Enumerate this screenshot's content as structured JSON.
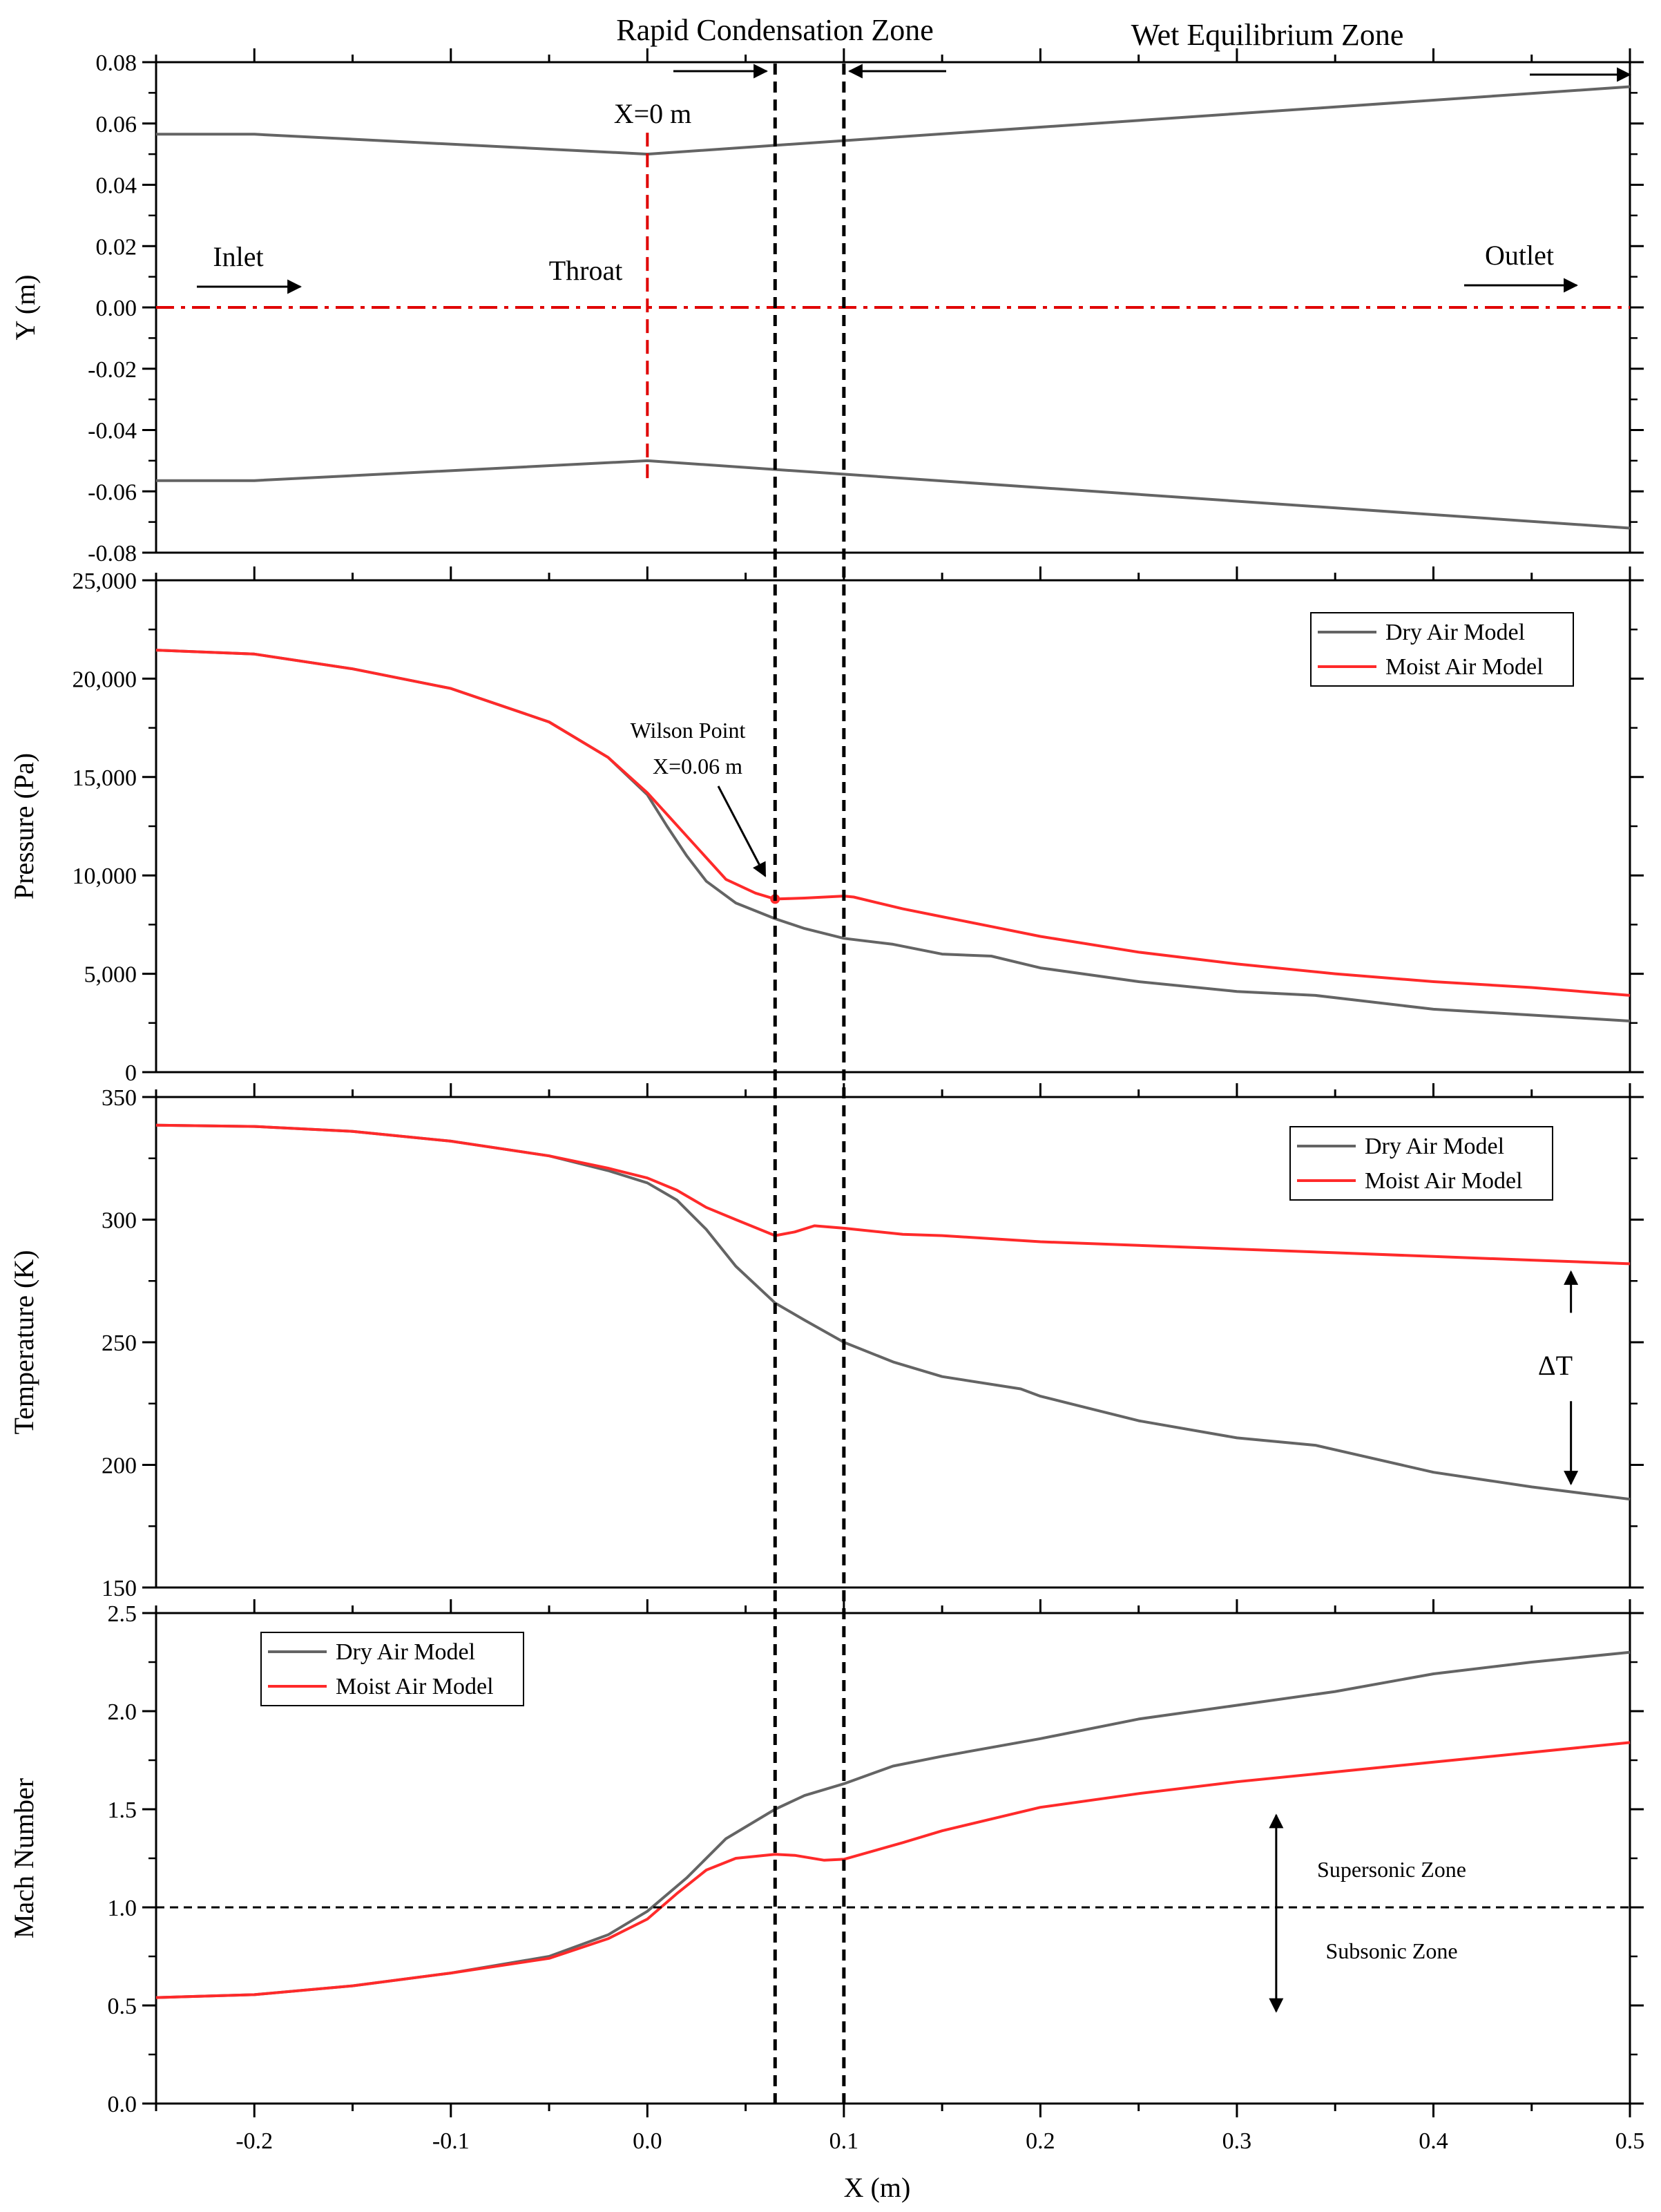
{
  "figure": {
    "x_axis": {
      "label": "X (m)",
      "range": [
        -0.25,
        0.5
      ],
      "ticks": [
        -0.2,
        -0.1,
        0.0,
        0.1,
        0.2,
        0.3,
        0.4,
        0.5
      ],
      "tick_labels": [
        "-0.2",
        "-0.1",
        "0.0",
        "0.1",
        "0.2",
        "0.3",
        "0.4",
        "0.5"
      ]
    },
    "zones": {
      "rapid_label": "Rapid Condensation Zone",
      "wet_label": "Wet Equilibrium Zone",
      "rapid_start_x": 0.065,
      "rapid_end_x": 0.1
    },
    "colors": {
      "dry": "#646464",
      "moist": "#ff2a2a",
      "centerline": "#e00000",
      "black": "#000000"
    },
    "legend": {
      "dry": "Dry Air Model",
      "moist": "Moist Air Model"
    }
  },
  "chart_data": [
    {
      "type": "line",
      "name": "geometry",
      "ylabel": "Y (m)",
      "ylim": [
        -0.08,
        0.08
      ],
      "yticks": [
        -0.08,
        -0.06,
        -0.04,
        -0.02,
        0.0,
        0.02,
        0.04,
        0.06,
        0.08
      ],
      "ytick_labels": [
        "-0.08",
        "-0.06",
        "-0.04",
        "-0.02",
        "0.00",
        "0.02",
        "0.04",
        "0.06",
        "0.08"
      ],
      "series": [
        {
          "name": "upper wall",
          "color": "#646464",
          "x": [
            -0.25,
            -0.2,
            0.0,
            0.5
          ],
          "y": [
            0.0565,
            0.0565,
            0.05,
            0.072
          ]
        },
        {
          "name": "lower wall",
          "color": "#646464",
          "x": [
            -0.25,
            -0.2,
            0.0,
            0.5
          ],
          "y": [
            -0.0565,
            -0.0565,
            -0.05,
            -0.072
          ]
        }
      ],
      "centerline_y": 0.0,
      "throat_x": 0.0,
      "throat_y_range": [
        -0.057,
        0.057
      ],
      "annotations": {
        "throat_pos": "X=0 m",
        "inlet": "Inlet",
        "throat": "Throat",
        "outlet": "Outlet"
      }
    },
    {
      "type": "line",
      "name": "pressure",
      "ylabel": "Pressure (Pa)",
      "ylim": [
        0,
        25000
      ],
      "yticks": [
        0,
        5000,
        10000,
        15000,
        20000,
        25000
      ],
      "ytick_labels": [
        "0",
        "5,000",
        "10,000",
        "15,000",
        "20,000",
        "25,000"
      ],
      "legend_position": "top-right",
      "series": [
        {
          "name": "Dry Air Model",
          "color": "#646464",
          "x": [
            -0.25,
            -0.2,
            -0.15,
            -0.1,
            -0.05,
            -0.02,
            0.0,
            0.01,
            0.02,
            0.03,
            0.045,
            0.065,
            0.08,
            0.1,
            0.125,
            0.15,
            0.175,
            0.2,
            0.25,
            0.3,
            0.34,
            0.4,
            0.45,
            0.5
          ],
          "y": [
            21450,
            21250,
            20500,
            19500,
            17800,
            16000,
            14100,
            12500,
            11000,
            9700,
            8600,
            7800,
            7300,
            6800,
            6500,
            6000,
            5900,
            5300,
            4600,
            4100,
            3900,
            3200,
            2900,
            2600
          ]
        },
        {
          "name": "Moist Air Model",
          "color": "#ff2a2a",
          "x": [
            -0.25,
            -0.2,
            -0.15,
            -0.1,
            -0.05,
            -0.02,
            0.0,
            0.01,
            0.02,
            0.03,
            0.04,
            0.055,
            0.065,
            0.08,
            0.1,
            0.105,
            0.13,
            0.15,
            0.175,
            0.2,
            0.25,
            0.3,
            0.35,
            0.4,
            0.45,
            0.5
          ],
          "y": [
            21450,
            21250,
            20500,
            19500,
            17800,
            16000,
            14200,
            13100,
            12000,
            10900,
            9800,
            9100,
            8800,
            8850,
            8950,
            8900,
            8300,
            7900,
            7400,
            6900,
            6100,
            5500,
            5000,
            4600,
            4300,
            3900
          ]
        }
      ],
      "wilson_point": {
        "x": 0.065,
        "y": 8800,
        "label_line1": "Wilson Point",
        "label_line2": "X=0.06 m"
      }
    },
    {
      "type": "line",
      "name": "temperature",
      "ylabel": "Temperature (K)",
      "ylim": [
        150,
        350
      ],
      "yticks": [
        150,
        200,
        250,
        300,
        350
      ],
      "ytick_labels": [
        "150",
        "200",
        "250",
        "300",
        "350"
      ],
      "legend_position": "top-right",
      "series": [
        {
          "name": "Dry Air Model",
          "color": "#646464",
          "x": [
            -0.25,
            -0.2,
            -0.15,
            -0.1,
            -0.05,
            -0.02,
            0.0,
            0.015,
            0.03,
            0.045,
            0.065,
            0.08,
            0.1,
            0.125,
            0.15,
            0.19,
            0.2,
            0.25,
            0.3,
            0.34,
            0.4,
            0.45,
            0.5
          ],
          "y": [
            338.5,
            338,
            336,
            332,
            326,
            320,
            315,
            308,
            296,
            281,
            266,
            259,
            250,
            242,
            236,
            231,
            228,
            218,
            211,
            208,
            197,
            191,
            186
          ]
        },
        {
          "name": "Moist Air Model",
          "color": "#ff2a2a",
          "x": [
            -0.25,
            -0.2,
            -0.15,
            -0.1,
            -0.05,
            -0.02,
            0.0,
            0.015,
            0.03,
            0.045,
            0.065,
            0.075,
            0.085,
            0.1,
            0.13,
            0.15,
            0.2,
            0.25,
            0.3,
            0.35,
            0.4,
            0.45,
            0.5
          ],
          "y": [
            338.5,
            338,
            336,
            332,
            326,
            321,
            317,
            312,
            305,
            300,
            293.5,
            295,
            297.5,
            296.5,
            294,
            293.5,
            291,
            289.5,
            288,
            286.5,
            285,
            283.5,
            282
          ]
        }
      ],
      "delta_t": {
        "label": "ΔT",
        "x": 0.47,
        "y_top": 281,
        "y_bottom": 190
      }
    },
    {
      "type": "line",
      "name": "mach",
      "ylabel": "Mach Number",
      "xlabel": "X (m)",
      "ylim": [
        0.0,
        2.5
      ],
      "yticks": [
        0.0,
        0.5,
        1.0,
        1.5,
        2.0,
        2.5
      ],
      "ytick_labels": [
        "0.0",
        "0.5",
        "1.0",
        "1.5",
        "2.0",
        "2.5"
      ],
      "legend_position": "top-left",
      "series": [
        {
          "name": "Dry Air Model",
          "color": "#646464",
          "x": [
            -0.25,
            -0.2,
            -0.15,
            -0.1,
            -0.05,
            -0.02,
            0.0,
            0.02,
            0.04,
            0.065,
            0.08,
            0.1,
            0.125,
            0.15,
            0.2,
            0.25,
            0.3,
            0.35,
            0.4,
            0.45,
            0.5
          ],
          "y": [
            0.54,
            0.555,
            0.6,
            0.665,
            0.75,
            0.86,
            0.98,
            1.15,
            1.35,
            1.5,
            1.57,
            1.63,
            1.72,
            1.77,
            1.86,
            1.96,
            2.03,
            2.1,
            2.19,
            2.25,
            2.3
          ]
        },
        {
          "name": "Moist Air Model",
          "color": "#ff2a2a",
          "x": [
            -0.25,
            -0.2,
            -0.15,
            -0.1,
            -0.05,
            -0.02,
            0.0,
            0.015,
            0.03,
            0.045,
            0.065,
            0.075,
            0.09,
            0.1,
            0.13,
            0.15,
            0.2,
            0.25,
            0.3,
            0.35,
            0.4,
            0.45,
            0.5
          ],
          "y": [
            0.54,
            0.555,
            0.6,
            0.665,
            0.74,
            0.84,
            0.94,
            1.07,
            1.19,
            1.25,
            1.27,
            1.265,
            1.24,
            1.245,
            1.33,
            1.39,
            1.51,
            1.58,
            1.64,
            1.69,
            1.74,
            1.79,
            1.84
          ]
        }
      ],
      "reference_line_y": 1.0,
      "zone_arrow": {
        "x": 0.32,
        "y_top": 1.47,
        "y_bottom": 0.47
      },
      "annotations": {
        "supersonic": "Supersonic Zone",
        "subsonic": "Subsonic Zone"
      }
    }
  ]
}
